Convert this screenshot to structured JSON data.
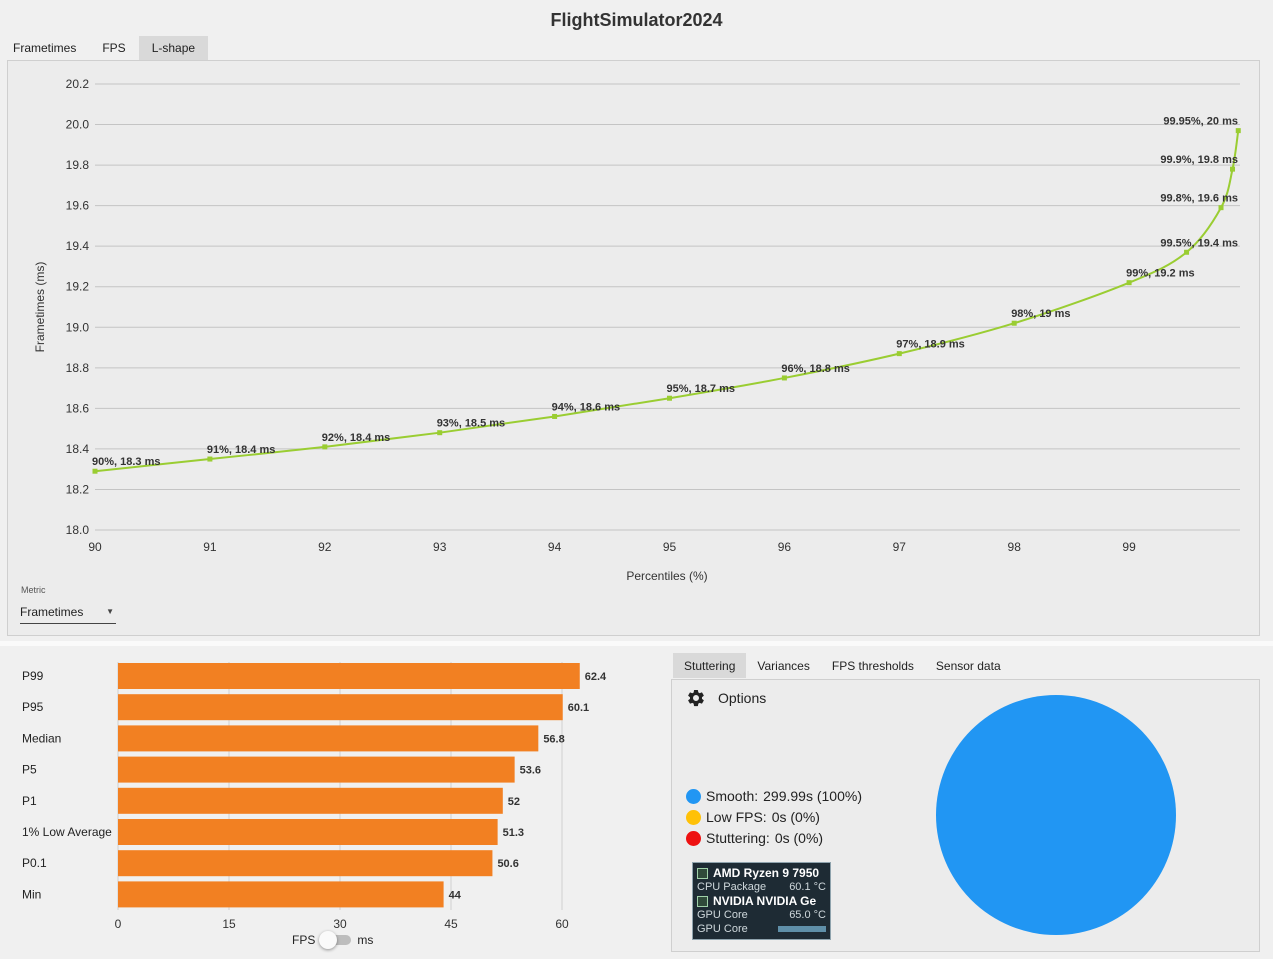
{
  "app": {
    "title": "FlightSimulator2024"
  },
  "top_tabs": [
    {
      "label": "Frametimes",
      "active": false
    },
    {
      "label": "FPS",
      "active": false
    },
    {
      "label": "L-shape",
      "active": true
    }
  ],
  "metric": {
    "caption": "Metric",
    "value": "Frametimes"
  },
  "bottom_tabs": [
    {
      "label": "Stuttering",
      "active": true
    },
    {
      "label": "Variances",
      "active": false
    },
    {
      "label": "FPS thresholds",
      "active": false
    },
    {
      "label": "Sensor data",
      "active": false
    }
  ],
  "fps_toggle": {
    "left_label": "FPS",
    "right_label": "ms",
    "state": "FPS"
  },
  "options": {
    "label": "Options",
    "icon": "gear-icon"
  },
  "stuttering": {
    "legend": [
      {
        "label": "Smooth:",
        "value": "299.99s (100%)",
        "color": "#2196f3"
      },
      {
        "label": "Low FPS:",
        "value": "0s (0%)",
        "color": "#ffc107"
      },
      {
        "label": "Stuttering:",
        "value": "0s (0%)",
        "color": "#ee1111"
      }
    ]
  },
  "overlay": {
    "cpu_name": "AMD Ryzen 9 7950",
    "cpu_sensor": "CPU Package",
    "cpu_value": "60.1 °C",
    "gpu_name": "NVIDIA NVIDIA Ge",
    "gpu_sensor": "GPU Core",
    "gpu_value": "65.0 °C",
    "gpu_sensor2": "GPU Core"
  },
  "chart_data": [
    {
      "type": "line",
      "title": "",
      "xlabel": "Percentiles (%)",
      "ylabel": "Frametimes (ms)",
      "xlim": [
        90,
        100
      ],
      "ylim": [
        18.0,
        20.2
      ],
      "x_ticks": [
        "90",
        "91",
        "92",
        "93",
        "94",
        "95",
        "96",
        "97",
        "98",
        "99"
      ],
      "y_ticks": [
        "18.0",
        "18.2",
        "18.4",
        "18.6",
        "18.8",
        "19.0",
        "19.2",
        "19.4",
        "19.6",
        "19.8",
        "20.0",
        "20.2"
      ],
      "grid": true,
      "color": "#9acd32",
      "points": [
        {
          "x": 90,
          "y": 18.29,
          "label": "90%, 18.3 ms"
        },
        {
          "x": 91,
          "y": 18.35,
          "label": "91%, 18.4 ms"
        },
        {
          "x": 92,
          "y": 18.41,
          "label": "92%, 18.4 ms"
        },
        {
          "x": 93,
          "y": 18.48,
          "label": "93%, 18.5 ms"
        },
        {
          "x": 94,
          "y": 18.56,
          "label": "94%, 18.6 ms"
        },
        {
          "x": 95,
          "y": 18.65,
          "label": "95%, 18.7 ms"
        },
        {
          "x": 96,
          "y": 18.75,
          "label": "96%, 18.8 ms"
        },
        {
          "x": 97,
          "y": 18.87,
          "label": "97%, 18.9 ms"
        },
        {
          "x": 98,
          "y": 19.02,
          "label": "98%, 19 ms"
        },
        {
          "x": 99,
          "y": 19.22,
          "label": "99%, 19.2 ms"
        },
        {
          "x": 99.5,
          "y": 19.37,
          "label": "99.5%, 19.4 ms"
        },
        {
          "x": 99.8,
          "y": 19.59,
          "label": "99.8%, 19.6 ms"
        },
        {
          "x": 99.9,
          "y": 19.78,
          "label": "99.9%, 19.8 ms"
        },
        {
          "x": 99.95,
          "y": 19.97,
          "label": "99.95%, 20 ms"
        }
      ]
    },
    {
      "type": "bar",
      "orientation": "horizontal",
      "title": "",
      "categories": [
        "P99",
        "P95",
        "Median",
        "P5",
        "P1",
        "1% Low Average",
        "P0.1",
        "Min"
      ],
      "values": [
        62.4,
        60.1,
        56.8,
        53.6,
        52,
        51.3,
        50.6,
        44
      ],
      "value_labels": [
        "62.4",
        "60.1",
        "56.8",
        "53.6",
        "52",
        "51.3",
        "50.6",
        "44"
      ],
      "xlim": [
        0,
        66
      ],
      "x_ticks": [
        "0",
        "15",
        "30",
        "45",
        "60"
      ],
      "grid": true,
      "color": "#f28022"
    },
    {
      "type": "pie",
      "title": "",
      "labels": [
        "Smooth",
        "Low FPS",
        "Stuttering"
      ],
      "values": [
        100,
        0,
        0
      ],
      "colors": [
        "#2196f3",
        "#ffc107",
        "#ee1111"
      ]
    }
  ]
}
